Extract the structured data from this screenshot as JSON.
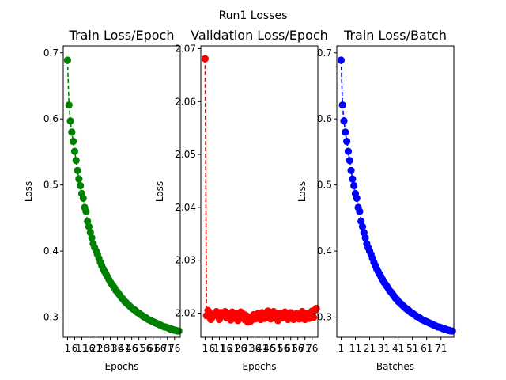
{
  "figure": {
    "suptitle": "Run1 Losses"
  },
  "chart_data": [
    {
      "type": "line",
      "title": "Train Loss/Epoch",
      "xlabel": "Epochs",
      "ylabel": "Loss",
      "color": "#008000",
      "line_style": "dashed",
      "marker": "circle",
      "grid": false,
      "xlim": [
        -2,
        80
      ],
      "ylim": [
        0.2695,
        0.7105
      ],
      "yticks": [
        0.3,
        0.4,
        0.5,
        0.6,
        0.7
      ],
      "ytick_labels": [
        "0.3",
        "0.4",
        "0.5",
        "0.6",
        "0.7"
      ],
      "xticks": [
        1,
        6,
        11,
        16,
        21,
        26,
        31,
        36,
        41,
        46,
        51,
        56,
        61,
        66,
        71,
        76
      ],
      "xtick_labels": [
        "1",
        "6",
        "11",
        "16",
        "21",
        "26",
        "31",
        "36",
        "41",
        "46",
        "51",
        "56",
        "61",
        "66",
        "71",
        "76"
      ],
      "x": [
        1,
        2,
        3,
        4,
        5,
        6,
        7,
        8,
        9,
        10,
        11,
        12,
        13,
        14,
        15,
        16,
        17,
        18,
        19,
        20,
        21,
        22,
        23,
        24,
        25,
        26,
        27,
        28,
        29,
        30,
        31,
        32,
        33,
        34,
        35,
        36,
        37,
        38,
        39,
        40,
        41,
        42,
        43,
        44,
        45,
        46,
        47,
        48,
        49,
        50,
        51,
        52,
        53,
        54,
        55,
        56,
        57,
        58,
        59,
        60,
        61,
        62,
        63,
        64,
        65,
        66,
        67,
        68,
        69,
        70,
        71,
        72,
        73,
        74,
        75,
        76,
        77,
        78,
        79
      ],
      "y": [
        0.689,
        0.621,
        0.597,
        0.58,
        0.566,
        0.551,
        0.537,
        0.522,
        0.509,
        0.499,
        0.487,
        0.48,
        0.466,
        0.46,
        0.445,
        0.437,
        0.428,
        0.42,
        0.411,
        0.405,
        0.4,
        0.395,
        0.389,
        0.383,
        0.378,
        0.373,
        0.369,
        0.365,
        0.361,
        0.357,
        0.353,
        0.35,
        0.347,
        0.344,
        0.34,
        0.338,
        0.335,
        0.332,
        0.329,
        0.327,
        0.324,
        0.322,
        0.32,
        0.318,
        0.316,
        0.314,
        0.312,
        0.311,
        0.309,
        0.307,
        0.306,
        0.304,
        0.303,
        0.301,
        0.3,
        0.299,
        0.297,
        0.296,
        0.295,
        0.294,
        0.293,
        0.292,
        0.291,
        0.29,
        0.289,
        0.288,
        0.287,
        0.286,
        0.285,
        0.285,
        0.284,
        0.283,
        0.282,
        0.282,
        0.281,
        0.28,
        0.28,
        0.279,
        0.279
      ]
    },
    {
      "type": "line",
      "title": "Validation Loss/Epoch",
      "xlabel": "Epochs",
      "ylabel": "Loss",
      "color": "#ff0000",
      "line_style": "dashed",
      "marker": "circle",
      "grid": false,
      "xlim": [
        -2,
        80
      ],
      "ylim": [
        2.01543,
        2.07052
      ],
      "yticks": [
        2.02,
        2.03,
        2.04,
        2.05,
        2.06,
        2.07
      ],
      "ytick_labels": [
        "2.02",
        "2.03",
        "2.04",
        "2.05",
        "2.06",
        "2.07"
      ],
      "xticks": [
        1,
        6,
        11,
        16,
        21,
        26,
        31,
        36,
        41,
        46,
        51,
        56,
        61,
        66,
        71,
        76
      ],
      "xtick_labels": [
        "1",
        "6",
        "11",
        "16",
        "21",
        "26",
        "31",
        "36",
        "41",
        "46",
        "51",
        "56",
        "61",
        "66",
        "71",
        "76"
      ],
      "x": [
        1,
        2,
        3,
        4,
        5,
        6,
        7,
        8,
        9,
        10,
        11,
        12,
        13,
        14,
        15,
        16,
        17,
        18,
        19,
        20,
        21,
        22,
        23,
        24,
        25,
        26,
        27,
        28,
        29,
        30,
        31,
        32,
        33,
        34,
        35,
        36,
        37,
        38,
        39,
        40,
        41,
        42,
        43,
        44,
        45,
        46,
        47,
        48,
        49,
        50,
        51,
        52,
        53,
        54,
        55,
        56,
        57,
        58,
        59,
        60,
        61,
        62,
        63,
        64,
        65,
        66,
        67,
        68,
        69,
        70,
        71,
        72,
        73,
        74,
        75,
        76,
        77,
        78,
        79
      ],
      "y": [
        2.0681,
        2.0195,
        2.0205,
        2.0201,
        2.0188,
        2.0192,
        2.0198,
        2.0196,
        2.0203,
        2.0199,
        2.0188,
        2.0201,
        2.0195,
        2.0197,
        2.0203,
        2.0191,
        2.0199,
        2.0194,
        2.0187,
        2.0202,
        2.019,
        2.0196,
        2.02,
        2.0186,
        2.0193,
        2.0202,
        2.0191,
        2.0198,
        2.0187,
        2.0195,
        2.0183,
        2.0191,
        2.0185,
        2.0192,
        2.0197,
        2.0189,
        2.0194,
        2.0199,
        2.0193,
        2.0188,
        2.0201,
        2.0196,
        2.019,
        2.0198,
        2.0204,
        2.0192,
        2.0189,
        2.0197,
        2.0203,
        2.0194,
        2.0199,
        2.0186,
        2.0196,
        2.02,
        2.0191,
        2.0198,
        2.0202,
        2.0193,
        2.0188,
        2.0195,
        2.0201,
        2.0196,
        2.0188,
        2.0193,
        2.0199,
        2.0194,
        2.0189,
        2.0197,
        2.0203,
        2.0195,
        2.0188,
        2.02,
        2.0194,
        2.019,
        2.0197,
        2.0204,
        2.0192,
        2.0206,
        2.0209
      ]
    },
    {
      "type": "line",
      "title": "Train Loss/Batch",
      "xlabel": "Batches",
      "ylabel": "Loss",
      "color": "#0000ff",
      "line_style": "dashed",
      "marker": "circle",
      "grid": false,
      "xlim": [
        -2,
        80
      ],
      "ylim": [
        0.2695,
        0.7105
      ],
      "yticks": [
        0.3,
        0.4,
        0.5,
        0.6,
        0.7
      ],
      "ytick_labels": [
        "0.3",
        "0.4",
        "0.5",
        "0.6",
        "0.7"
      ],
      "xticks": [
        1,
        11,
        21,
        31,
        41,
        51,
        61,
        71
      ],
      "xtick_labels": [
        "1",
        "11",
        "21",
        "31",
        "41",
        "51",
        "61",
        "71"
      ],
      "x": [
        1,
        2,
        3,
        4,
        5,
        6,
        7,
        8,
        9,
        10,
        11,
        12,
        13,
        14,
        15,
        16,
        17,
        18,
        19,
        20,
        21,
        22,
        23,
        24,
        25,
        26,
        27,
        28,
        29,
        30,
        31,
        32,
        33,
        34,
        35,
        36,
        37,
        38,
        39,
        40,
        41,
        42,
        43,
        44,
        45,
        46,
        47,
        48,
        49,
        50,
        51,
        52,
        53,
        54,
        55,
        56,
        57,
        58,
        59,
        60,
        61,
        62,
        63,
        64,
        65,
        66,
        67,
        68,
        69,
        70,
        71,
        72,
        73,
        74,
        75,
        76,
        77,
        78,
        79
      ],
      "y": [
        0.689,
        0.621,
        0.597,
        0.58,
        0.566,
        0.551,
        0.537,
        0.522,
        0.509,
        0.499,
        0.487,
        0.48,
        0.466,
        0.46,
        0.445,
        0.437,
        0.428,
        0.42,
        0.411,
        0.405,
        0.4,
        0.395,
        0.389,
        0.383,
        0.378,
        0.373,
        0.369,
        0.365,
        0.361,
        0.357,
        0.353,
        0.35,
        0.347,
        0.344,
        0.34,
        0.338,
        0.335,
        0.332,
        0.329,
        0.327,
        0.324,
        0.322,
        0.32,
        0.318,
        0.316,
        0.314,
        0.312,
        0.311,
        0.309,
        0.307,
        0.306,
        0.304,
        0.303,
        0.301,
        0.3,
        0.299,
        0.297,
        0.296,
        0.295,
        0.294,
        0.293,
        0.292,
        0.291,
        0.29,
        0.289,
        0.288,
        0.287,
        0.286,
        0.285,
        0.285,
        0.284,
        0.283,
        0.282,
        0.282,
        0.281,
        0.28,
        0.28,
        0.279,
        0.279
      ]
    }
  ]
}
